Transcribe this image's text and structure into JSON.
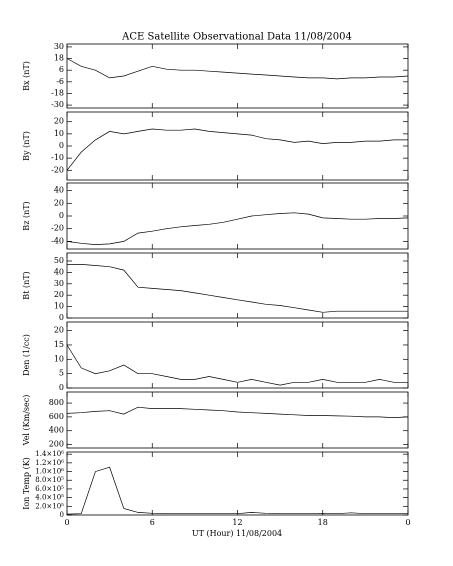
{
  "chart_data": [
    {
      "type": "line",
      "title": "ACE Satellite Observational Data   11/08/2004",
      "ylabel": "Bx (nT)",
      "x": [
        0,
        1,
        2,
        3,
        4,
        5,
        6,
        7,
        8,
        9,
        10,
        11,
        12,
        13,
        14,
        15,
        16,
        17,
        18,
        19,
        20,
        21,
        22,
        23,
        24
      ],
      "values": [
        18,
        10,
        6,
        -2,
        0,
        5,
        10,
        7,
        6,
        6,
        5,
        4,
        3,
        2,
        1,
        0,
        -1,
        -2,
        -2,
        -3,
        -2,
        -2,
        -1,
        -1,
        0
      ],
      "ylim": [
        -33,
        33
      ],
      "yticks": [
        30,
        18,
        6,
        -6,
        -18,
        -30
      ],
      "color": "#000000"
    },
    {
      "type": "line",
      "ylabel": "By (nT)",
      "x": [
        0,
        1,
        2,
        3,
        4,
        5,
        6,
        7,
        8,
        9,
        10,
        11,
        12,
        13,
        14,
        15,
        16,
        17,
        18,
        19,
        20,
        21,
        22,
        23,
        24
      ],
      "values": [
        -20,
        -5,
        5,
        12,
        10,
        12,
        14,
        13,
        13,
        14,
        12,
        11,
        10,
        9,
        6,
        5,
        3,
        4,
        2,
        3,
        3,
        4,
        4,
        5,
        5
      ],
      "ylim": [
        -28,
        28
      ],
      "yticks": [
        20,
        10,
        0,
        -10,
        -20
      ],
      "color": "#000000"
    },
    {
      "type": "line",
      "ylabel": "Bz (nT)",
      "x": [
        0,
        1,
        2,
        3,
        4,
        5,
        6,
        7,
        8,
        9,
        10,
        11,
        12,
        13,
        14,
        15,
        16,
        17,
        18,
        19,
        20,
        21,
        22,
        23,
        24
      ],
      "values": [
        -40,
        -43,
        -45,
        -44,
        -40,
        -27,
        -24,
        -20,
        -17,
        -15,
        -13,
        -10,
        -5,
        0,
        2,
        4,
        5,
        3,
        -3,
        -4,
        -5,
        -5,
        -4,
        -4,
        -3
      ],
      "ylim": [
        -52,
        52
      ],
      "yticks": [
        40,
        20,
        0,
        -20,
        -40
      ],
      "color": "#000000"
    },
    {
      "type": "line",
      "ylabel": "Bt (nT)",
      "x": [
        0,
        1,
        2,
        3,
        4,
        5,
        6,
        7,
        8,
        9,
        10,
        11,
        12,
        13,
        14,
        15,
        16,
        17,
        18,
        19,
        20,
        21,
        22,
        23,
        24
      ],
      "values": [
        47,
        47,
        46,
        45,
        42,
        27,
        26,
        25,
        24,
        22,
        20,
        18,
        16,
        14,
        12,
        11,
        9,
        7,
        5,
        6,
        6,
        6,
        6,
        6,
        6
      ],
      "ylim": [
        0,
        57
      ],
      "yticks": [
        50,
        40,
        30,
        20,
        10,
        0
      ],
      "color": "#000000"
    },
    {
      "type": "line",
      "ylabel": "Den (1/cc)",
      "x": [
        0,
        1,
        2,
        3,
        4,
        5,
        6,
        7,
        8,
        9,
        10,
        11,
        12,
        13,
        14,
        15,
        16,
        17,
        18,
        19,
        20,
        21,
        22,
        23,
        24
      ],
      "values": [
        15,
        7,
        5,
        6,
        8,
        5,
        5,
        4,
        3,
        3,
        4,
        3,
        2,
        3,
        2,
        1,
        2,
        2,
        3,
        2,
        2,
        2,
        3,
        2,
        2
      ],
      "ylim": [
        0,
        23
      ],
      "yticks": [
        20,
        15,
        10,
        5,
        0
      ],
      "color": "#000000"
    },
    {
      "type": "line",
      "ylabel": "Vel (Km/sec)",
      "x": [
        0,
        1,
        2,
        3,
        4,
        5,
        6,
        7,
        8,
        9,
        10,
        11,
        12,
        13,
        14,
        15,
        16,
        17,
        18,
        19,
        20,
        21,
        22,
        23,
        24
      ],
      "values": [
        650,
        660,
        680,
        690,
        640,
        740,
        720,
        720,
        720,
        710,
        700,
        690,
        670,
        660,
        650,
        640,
        630,
        620,
        620,
        615,
        610,
        600,
        600,
        590,
        600
      ],
      "ylim": [
        150,
        960
      ],
      "yticks": [
        800,
        600,
        400,
        200
      ],
      "color": "#000000"
    },
    {
      "type": "line",
      "ylabel": "Ion Temp (K)",
      "xlabel": "UT (Hour)  11/08/2004",
      "x": [
        0,
        1,
        2,
        3,
        4,
        5,
        6,
        7,
        8,
        9,
        10,
        11,
        12,
        13,
        14,
        15,
        16,
        17,
        18,
        19,
        20,
        21,
        22,
        23,
        24
      ],
      "values": [
        20000,
        30000,
        1000000,
        1100000,
        150000,
        60000,
        40000,
        30000,
        30000,
        30000,
        30000,
        30000,
        30000,
        60000,
        40000,
        30000,
        30000,
        30000,
        40000,
        30000,
        50000,
        30000,
        30000,
        30000,
        30000
      ],
      "ylim": [
        0,
        1450000
      ],
      "yticks": [
        {
          "value": 1400000,
          "label": "1.4×10⁶"
        },
        {
          "value": 1200000,
          "label": "1.2×10⁶"
        },
        {
          "value": 1000000,
          "label": "1.0×10⁶"
        },
        {
          "value": 800000,
          "label": "8.0×10⁵"
        },
        {
          "value": 600000,
          "label": "6.0×10⁵"
        },
        {
          "value": 400000,
          "label": "4.0×10⁵"
        },
        {
          "value": 200000,
          "label": "2.0×10⁵"
        },
        0
      ],
      "xlim": [
        0,
        24
      ],
      "xticks": [
        0,
        6,
        12,
        18,
        {
          "value": 24,
          "label": "0"
        }
      ],
      "color": "#000000"
    }
  ]
}
